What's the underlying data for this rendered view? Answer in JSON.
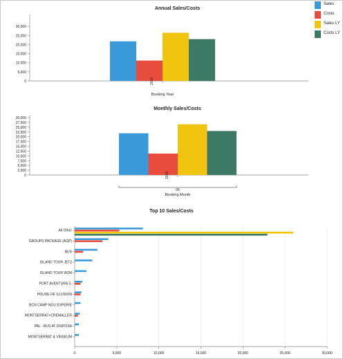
{
  "chart_data": [
    {
      "type": "bar",
      "title": "Annual Sales/Costs",
      "xlabel": "Booking Year",
      "categories": [
        "2018"
      ],
      "ylim": [
        0,
        35000
      ],
      "yticks": [
        "0",
        "5,000",
        "10,000",
        "15,000",
        "20,000",
        "25,000",
        "30,000"
      ],
      "series": [
        {
          "name": "Sales",
          "values": [
            21800
          ]
        },
        {
          "name": "Costs",
          "values": [
            11200
          ]
        },
        {
          "name": "Sales LY",
          "values": [
            26500
          ]
        },
        {
          "name": "Costs LY",
          "values": [
            23000
          ]
        }
      ]
    },
    {
      "type": "bar",
      "title": "Monthly Sales/Costs",
      "xlabel": "Booking Month",
      "categories": [
        "2018"
      ],
      "group_label": "06",
      "ylim": [
        0,
        30000
      ],
      "yticks": [
        "0",
        "2,500",
        "5,000",
        "7,500",
        "10,000",
        "12,500",
        "15,000",
        "17,500",
        "20,000",
        "22,500",
        "25,000",
        "27,500",
        "30,000"
      ],
      "series": [
        {
          "name": "Sales",
          "values": [
            21800
          ]
        },
        {
          "name": "Costs",
          "values": [
            11200
          ]
        },
        {
          "name": "Sales LY",
          "values": [
            26500
          ]
        },
        {
          "name": "Costs LY",
          "values": [
            23000
          ]
        }
      ]
    },
    {
      "type": "bar",
      "orientation": "horizontal",
      "title": "Top 10 Sales/Costs",
      "categories": [
        "All Other",
        "GROUPS PACKAGE (AGP)",
        "BUS",
        "ISLAND TOUR JET2",
        "ISLAND TOUR  W2M",
        "PORT AVENTURA S.",
        "HOUSE OF ILLUSION",
        "BCN CAMP NOU EXPERIE",
        "MONTSERRAT+CREMALLER",
        "PAL - BUS AT DISPOSA",
        "MONTSERRAT & VINSEUM"
      ],
      "xlim": [
        0,
        30000
      ],
      "xticks": [
        "0",
        "5,000",
        "10,000",
        "15,000",
        "20,000",
        "25,000",
        "30,000"
      ],
      "series": [
        {
          "name": "Sales",
          "values": [
            8100,
            4000,
            2700,
            2100,
            1400,
            900,
            800,
            700,
            600,
            500,
            500
          ]
        },
        {
          "name": "Costs",
          "values": [
            5300,
            3300,
            1000,
            0,
            0,
            700,
            700,
            0,
            400,
            0,
            0
          ]
        },
        {
          "name": "Sales LY",
          "values": [
            26000,
            0,
            0,
            0,
            0,
            0,
            0,
            0,
            0,
            0,
            0
          ]
        },
        {
          "name": "Costs LY",
          "values": [
            22900,
            0,
            0,
            0,
            0,
            0,
            0,
            0,
            0,
            0,
            0
          ]
        }
      ]
    }
  ],
  "legend": [
    {
      "label": "Sales",
      "color": "#3a9ad9"
    },
    {
      "label": "Costs",
      "color": "#e74c3c"
    },
    {
      "label": "Sales LY",
      "color": "#f1c40f"
    },
    {
      "label": "Costs LY",
      "color": "#3d7a66"
    }
  ]
}
